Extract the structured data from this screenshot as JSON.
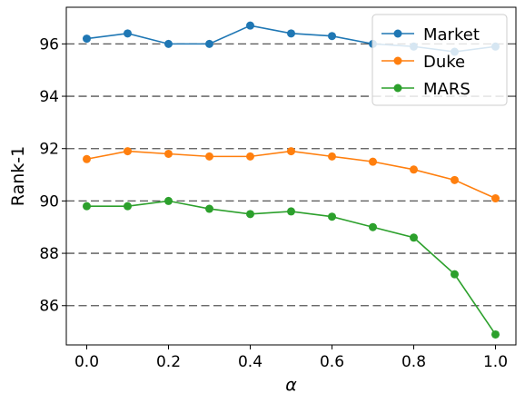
{
  "chart_data": {
    "type": "line",
    "title": "",
    "xlabel": "α",
    "ylabel": "Rank-1",
    "x": [
      0.0,
      0.1,
      0.2,
      0.3,
      0.4,
      0.5,
      0.6,
      0.7,
      0.8,
      0.9,
      1.0
    ],
    "xlim": [
      -0.05,
      1.05
    ],
    "ylim": [
      84.5,
      97.4
    ],
    "xticks": [
      0.0,
      0.2,
      0.4,
      0.6,
      0.8,
      1.0
    ],
    "xtick_labels": [
      "0.0",
      "0.2",
      "0.4",
      "0.6",
      "0.8",
      "1.0"
    ],
    "yticks": [
      86,
      88,
      90,
      92,
      94,
      96
    ],
    "ytick_labels": [
      "86",
      "88",
      "90",
      "92",
      "94",
      "96"
    ],
    "grid": "horizontal dashed",
    "legend_position": "top-right",
    "series": [
      {
        "name": "Market",
        "color": "#1f77b4",
        "values": [
          96.2,
          96.4,
          96.0,
          96.0,
          96.7,
          96.4,
          96.3,
          96.0,
          95.9,
          95.7,
          95.9
        ]
      },
      {
        "name": "Duke",
        "color": "#ff7f0e",
        "values": [
          91.6,
          91.9,
          91.8,
          91.7,
          91.7,
          91.9,
          91.7,
          91.5,
          91.2,
          90.8,
          90.1
        ]
      },
      {
        "name": "MARS",
        "color": "#2ca02c",
        "values": [
          89.8,
          89.8,
          90.0,
          89.7,
          89.5,
          89.6,
          89.4,
          89.0,
          88.6,
          87.2,
          84.9
        ]
      }
    ]
  }
}
